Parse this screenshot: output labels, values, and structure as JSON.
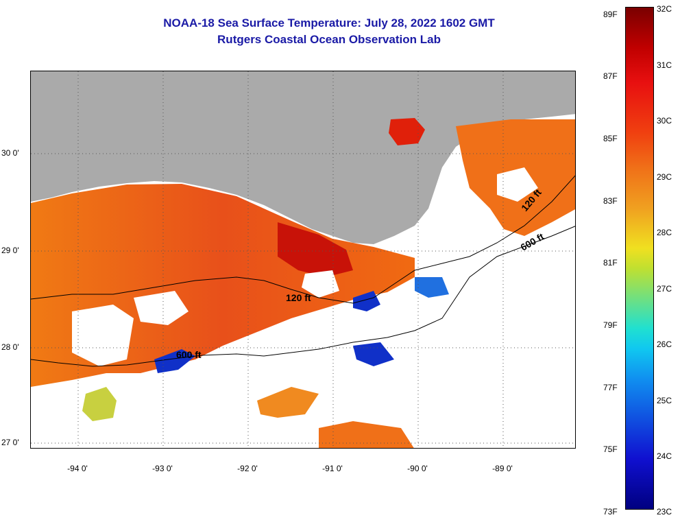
{
  "title_line1": "NOAA-18 Sea Surface Temperature:  July 28, 2022 1602 GMT",
  "title_line2": "Rutgers Coastal Ocean Observation Lab",
  "lat_labels": [
    "30 0'",
    "29 0'",
    "28 0'",
    "27 0'"
  ],
  "lon_labels": [
    "-94 0'",
    "-93 0'",
    "-92 0'",
    "-91 0'",
    "-90 0'",
    "-89 0'"
  ],
  "contour_labels": [
    "120 ft",
    "600 ft",
    "120 ft",
    "600 ft"
  ],
  "colorbar": {
    "fahrenheit": [
      "89F",
      "87F",
      "85F",
      "83F",
      "81F",
      "79F",
      "77F",
      "75F",
      "73F"
    ],
    "celsius": [
      "32C",
      "31C",
      "30C",
      "29C",
      "28C",
      "27C",
      "26C",
      "25C",
      "24C",
      "23C"
    ]
  },
  "colors": {
    "title": "#1a1aa6",
    "land": "#aaaaaa",
    "warm": "#e84a10",
    "hot": "#c81208",
    "cool": "#1030c8"
  }
}
